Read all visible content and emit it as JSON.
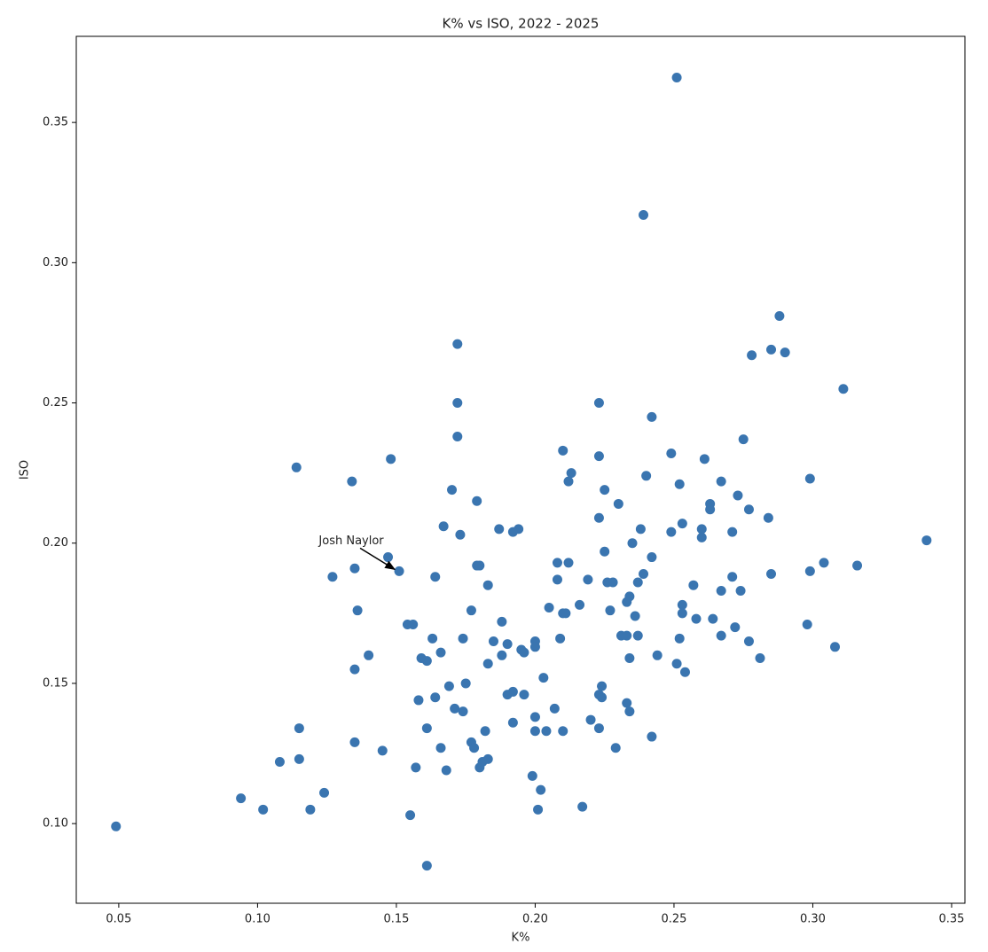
{
  "chart_data": {
    "type": "scatter",
    "title": "K% vs ISO, 2022 - 2025",
    "x_label": "K%",
    "y_label": "ISO",
    "color": "#3a75b0",
    "x": [
      0.251,
      0.239,
      0.288,
      0.172,
      0.285,
      0.278,
      0.29,
      0.311,
      0.172,
      0.223,
      0.242,
      0.172,
      0.275,
      0.148,
      0.21,
      0.249,
      0.223,
      0.114,
      0.213,
      0.212,
      0.261,
      0.134,
      0.17,
      0.24,
      0.299,
      0.252,
      0.267,
      0.225,
      0.273,
      0.263,
      0.263,
      0.277,
      0.23,
      0.179,
      0.223,
      0.284,
      0.253,
      0.341,
      0.167,
      0.187,
      0.194,
      0.192,
      0.249,
      0.238,
      0.26,
      0.271,
      0.26,
      0.173,
      0.235,
      0.147,
      0.151,
      0.135,
      0.127,
      0.225,
      0.242,
      0.208,
      0.212,
      0.304,
      0.316,
      0.179,
      0.18,
      0.164,
      0.208,
      0.239,
      0.299,
      0.285,
      0.271,
      0.226,
      0.228,
      0.219,
      0.237,
      0.183,
      0.234,
      0.233,
      0.257,
      0.267,
      0.274,
      0.253,
      0.205,
      0.216,
      0.227,
      0.136,
      0.177,
      0.21,
      0.211,
      0.236,
      0.253,
      0.258,
      0.264,
      0.188,
      0.154,
      0.156,
      0.272,
      0.298,
      0.231,
      0.233,
      0.237,
      0.163,
      0.174,
      0.209,
      0.252,
      0.267,
      0.277,
      0.308,
      0.185,
      0.19,
      0.2,
      0.2,
      0.166,
      0.195,
      0.196,
      0.14,
      0.234,
      0.244,
      0.183,
      0.188,
      0.281,
      0.251,
      0.254,
      0.159,
      0.161,
      0.135,
      0.203,
      0.224,
      0.175,
      0.169,
      0.223,
      0.224,
      0.19,
      0.192,
      0.196,
      0.164,
      0.158,
      0.233,
      0.207,
      0.171,
      0.174,
      0.234,
      0.2,
      0.22,
      0.192,
      0.115,
      0.161,
      0.182,
      0.2,
      0.204,
      0.21,
      0.223,
      0.242,
      0.135,
      0.177,
      0.166,
      0.178,
      0.229,
      0.145,
      0.108,
      0.115,
      0.183,
      0.181,
      0.18,
      0.157,
      0.168,
      0.199,
      0.124,
      0.202,
      0.094,
      0.102,
      0.119,
      0.201,
      0.217,
      0.155,
      0.049,
      0.161
    ],
    "y": [
      0.366,
      0.317,
      0.281,
      0.271,
      0.269,
      0.267,
      0.268,
      0.255,
      0.25,
      0.25,
      0.245,
      0.238,
      0.237,
      0.23,
      0.233,
      0.232,
      0.231,
      0.227,
      0.225,
      0.222,
      0.23,
      0.222,
      0.219,
      0.224,
      0.223,
      0.221,
      0.222,
      0.219,
      0.217,
      0.214,
      0.212,
      0.212,
      0.214,
      0.215,
      0.209,
      0.209,
      0.207,
      0.201,
      0.206,
      0.205,
      0.205,
      0.204,
      0.204,
      0.205,
      0.205,
      0.204,
      0.202,
      0.203,
      0.2,
      0.195,
      0.19,
      0.191,
      0.188,
      0.197,
      0.195,
      0.193,
      0.193,
      0.193,
      0.192,
      0.192,
      0.192,
      0.188,
      0.187,
      0.189,
      0.19,
      0.189,
      0.188,
      0.186,
      0.186,
      0.187,
      0.186,
      0.185,
      0.181,
      0.179,
      0.185,
      0.183,
      0.183,
      0.178,
      0.177,
      0.178,
      0.176,
      0.176,
      0.176,
      0.175,
      0.175,
      0.174,
      0.175,
      0.173,
      0.173,
      0.172,
      0.171,
      0.171,
      0.17,
      0.171,
      0.167,
      0.167,
      0.167,
      0.166,
      0.166,
      0.166,
      0.166,
      0.167,
      0.165,
      0.163,
      0.165,
      0.164,
      0.165,
      0.163,
      0.161,
      0.162,
      0.161,
      0.16,
      0.159,
      0.16,
      0.157,
      0.16,
      0.159,
      0.157,
      0.154,
      0.159,
      0.158,
      0.155,
      0.152,
      0.149,
      0.15,
      0.149,
      0.146,
      0.145,
      0.146,
      0.147,
      0.146,
      0.145,
      0.144,
      0.143,
      0.141,
      0.141,
      0.14,
      0.14,
      0.138,
      0.137,
      0.136,
      0.134,
      0.134,
      0.133,
      0.133,
      0.133,
      0.133,
      0.134,
      0.131,
      0.129,
      0.129,
      0.127,
      0.127,
      0.127,
      0.126,
      0.122,
      0.123,
      0.123,
      0.122,
      0.12,
      0.12,
      0.119,
      0.117,
      0.111,
      0.112,
      0.109,
      0.105,
      0.105,
      0.105,
      0.106,
      0.103,
      0.099,
      0.085
    ],
    "xlim": [
      0.0347,
      0.3548
    ],
    "ylim": [
      0.0716,
      0.3807
    ],
    "xticks": [
      0.05,
      {
        "value": 0.1,
        "label": "0.10"
      },
      0.15,
      {
        "value": 0.2,
        "label": "0.20"
      },
      0.25,
      {
        "value": 0.3,
        "label": "0.30"
      },
      0.35
    ],
    "yticks": [
      {
        "value": 0.1,
        "label": "0.10"
      },
      0.15,
      {
        "value": 0.2,
        "label": "0.20"
      },
      0.25,
      {
        "value": 0.3,
        "label": "0.30"
      },
      0.35
    ],
    "annotations": [
      {
        "text": "Josh Naylor",
        "x": 0.151,
        "y": 0.19
      }
    ]
  }
}
